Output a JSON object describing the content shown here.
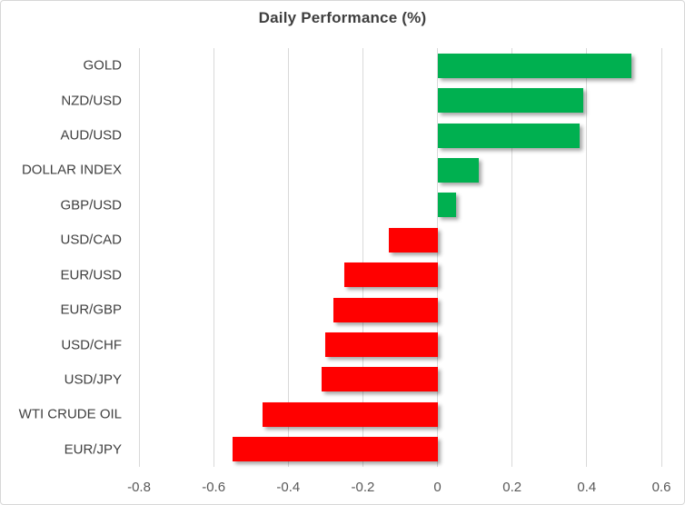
{
  "chart_data": {
    "type": "bar",
    "orientation": "horizontal",
    "title": "Daily Performance (%)",
    "categories": [
      "GOLD",
      "NZD/USD",
      "AUD/USD",
      "DOLLAR INDEX",
      "GBP/USD",
      "USD/CAD",
      "EUR/USD",
      "EUR/GBP",
      "USD/CHF",
      "USD/JPY",
      "WTI CRUDE OIL",
      "EUR/JPY"
    ],
    "values": [
      0.52,
      0.39,
      0.38,
      0.11,
      0.05,
      -0.13,
      -0.25,
      -0.28,
      -0.3,
      -0.31,
      -0.47,
      -0.55
    ],
    "xlim": [
      -0.8,
      0.6
    ],
    "xticks": [
      -0.8,
      -0.6,
      -0.4,
      -0.2,
      0,
      0.2,
      0.4,
      0.6
    ],
    "xtick_labels": [
      "-0.8",
      "-0.6",
      "-0.4",
      "-0.2",
      "0",
      "0.2",
      "0.4",
      "0.6"
    ],
    "grid": true,
    "legend": "none",
    "xlabel": "",
    "ylabel": "",
    "positive_color": "#00B050",
    "negative_color": "#FF0000",
    "gridline_color": "#D9D9D9",
    "title_color": "#3F3F3F",
    "category_label_color": "#404040",
    "tick_label_color": "#595959"
  }
}
